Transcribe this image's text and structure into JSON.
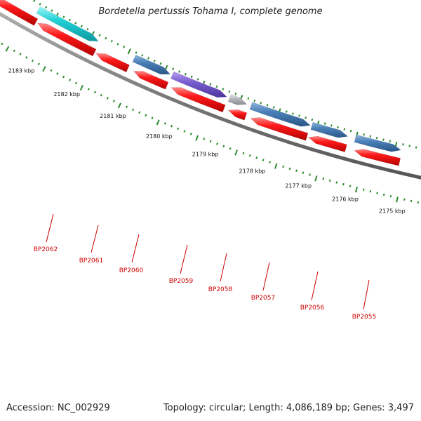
{
  "title": "Bordetella pertussis Tohama I, complete genome",
  "footer": {
    "accession": "Accession: NC_002929",
    "summary": "Topology: circular; Length: 4,086,189 bp; Genes: 3,497"
  },
  "colors": {
    "backbone": "#808080",
    "tick": "#2e8b2e",
    "forward_gene": "#ee1111",
    "reverse_default": "#4a80b8",
    "gene_label": "#cc0000",
    "leader": "#cc0000",
    "ruler_label": "#111111"
  },
  "ruler": [
    {
      "label": "2183 kbp"
    },
    {
      "label": "2182 kbp"
    },
    {
      "label": "2181 kbp"
    },
    {
      "label": "2180 kbp"
    },
    {
      "label": "2179 kbp"
    },
    {
      "label": "2178 kbp"
    },
    {
      "label": "2177 kbp"
    },
    {
      "label": "2176 kbp"
    },
    {
      "label": "2175 kbp"
    }
  ],
  "genes": [
    {
      "label": "BP2062",
      "color": "#2ed3d8"
    },
    {
      "label": "BP2061",
      "color": "#ee1111"
    },
    {
      "label": "BP2060",
      "color": "#4a80b8"
    },
    {
      "label": "BP2059",
      "color": "#7b5fd0"
    },
    {
      "label": "BP2058",
      "color": "#b9b9c2"
    },
    {
      "label": "BP2057",
      "color": "#4a80b8"
    },
    {
      "label": "BP2056",
      "color": "#4a80b8"
    },
    {
      "label": "BP2055",
      "color": "#4a80b8"
    }
  ]
}
